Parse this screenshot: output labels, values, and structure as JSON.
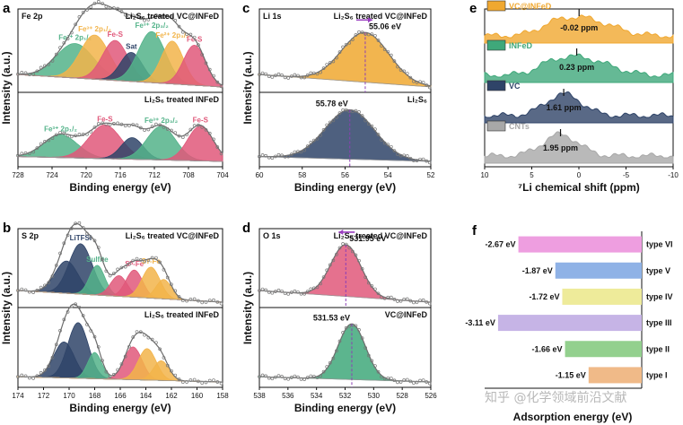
{
  "watermark": "知乎 @化学领域前沿文献",
  "chart_data": [
    {
      "id": "a",
      "panel_letter": "a",
      "type": "area",
      "core_level": "Fe 2p",
      "xlabel": "Binding energy (eV)",
      "ylabel": "Intensity (a.u.)",
      "xlim": [
        728,
        704
      ],
      "xticks": [
        728,
        724,
        720,
        716,
        712,
        708,
        704
      ],
      "subplots": [
        {
          "label": "Li₂S₆ treated VC@INFeD",
          "peaks": [
            {
              "name": "Fe³⁺ 2p₁/₂",
              "center": 721.3,
              "height": 0.5,
              "width": 2.2,
              "color": "#54b38a"
            },
            {
              "name": "Fe³⁺ 2p₁/₂",
              "center": 719.0,
              "height": 0.64,
              "width": 1.7,
              "color": "#f2b44a"
            },
            {
              "name": "Fe-S",
              "center": 716.6,
              "height": 0.58,
              "width": 1.5,
              "color": "#e0587a"
            },
            {
              "name": "Sat",
              "center": 714.7,
              "height": 0.42,
              "width": 1.3,
              "color": "#2f4468"
            },
            {
              "name": "Fe³⁺ 2p₃/₂",
              "center": 712.3,
              "height": 0.74,
              "width": 1.6,
              "color": "#54b38a"
            },
            {
              "name": "Fe²⁺ 2p₃/₂",
              "center": 709.9,
              "height": 0.62,
              "width": 1.3,
              "color": "#f2b44a"
            },
            {
              "name": "Fe-S",
              "center": 707.3,
              "height": 0.58,
              "width": 1.3,
              "color": "#e0587a"
            }
          ]
        },
        {
          "label": "Li₂S₆ treated INFeD",
          "peaks": [
            {
              "name": "Fe³⁺ 2p₁/₂",
              "center": 723.0,
              "height": 0.38,
              "width": 2.0,
              "color": "#54b38a"
            },
            {
              "name": "Fe-S",
              "center": 717.8,
              "height": 0.56,
              "width": 1.9,
              "color": "#e0587a"
            },
            {
              "name": "",
              "center": 714.6,
              "height": 0.36,
              "width": 1.3,
              "color": "#2f4468"
            },
            {
              "name": "Fe³⁺ 2p₃/₂",
              "center": 711.2,
              "height": 0.56,
              "width": 1.7,
              "color": "#54b38a"
            },
            {
              "name": "Fe-S",
              "center": 706.6,
              "height": 0.58,
              "width": 1.5,
              "color": "#e0587a"
            }
          ]
        }
      ]
    },
    {
      "id": "b",
      "panel_letter": "b",
      "type": "area",
      "core_level": "S 2p",
      "xlabel": "Binding energy (eV)",
      "ylabel": "Intensity (a.u.)",
      "xlim": [
        174,
        158
      ],
      "xticks": [
        174,
        172,
        170,
        168,
        166,
        164,
        162,
        160,
        158
      ],
      "subplots": [
        {
          "label": "Li₂S₆ treated VC@INFeD",
          "peaks": [
            {
              "name": "LiTFSI",
              "center": 169.1,
              "height": 0.78,
              "width": 0.9,
              "color": "#2f4468"
            },
            {
              "name": "",
              "center": 170.2,
              "height": 0.5,
              "width": 0.9,
              "color": "#2f4468"
            },
            {
              "name": "Sulfite",
              "center": 167.8,
              "height": 0.46,
              "width": 0.6,
              "color": "#54b38a"
            },
            {
              "name": "Sᴮ-Fe",
              "center": 164.9,
              "height": 0.42,
              "width": 0.65,
              "color": "#e0587a"
            },
            {
              "name": "",
              "center": 166.1,
              "height": 0.32,
              "width": 0.65,
              "color": "#e0587a"
            },
            {
              "name": "Sᴛ-Fe",
              "center": 163.6,
              "height": 0.48,
              "width": 0.7,
              "color": "#f2b44a"
            },
            {
              "name": "",
              "center": 162.6,
              "height": 0.3,
              "width": 0.6,
              "color": "#f2b44a"
            }
          ]
        },
        {
          "label": "Li₂S₆ treated INFeD",
          "peaks": [
            {
              "name": "",
              "center": 169.3,
              "height": 0.85,
              "width": 0.8,
              "color": "#2f4468"
            },
            {
              "name": "",
              "center": 170.4,
              "height": 0.55,
              "width": 0.8,
              "color": "#2f4468"
            },
            {
              "name": "",
              "center": 168.0,
              "height": 0.4,
              "width": 0.55,
              "color": "#54b38a"
            },
            {
              "name": "",
              "center": 165.0,
              "height": 0.5,
              "width": 0.7,
              "color": "#e0587a"
            },
            {
              "name": "",
              "center": 163.9,
              "height": 0.48,
              "width": 0.7,
              "color": "#f2b44a"
            },
            {
              "name": "",
              "center": 162.8,
              "height": 0.3,
              "width": 0.6,
              "color": "#f2b44a"
            }
          ]
        }
      ]
    },
    {
      "id": "c",
      "panel_letter": "c",
      "type": "area",
      "core_level": "Li 1s",
      "xlabel": "Binding energy (eV)",
      "ylabel": "Intensity (a.u.)",
      "xlim": [
        60,
        52
      ],
      "xticks": [
        60,
        58,
        56,
        54,
        52
      ],
      "subplots": [
        {
          "label": "Li₂S₆ treated VC@INFeD",
          "peak_label": "55.06 eV",
          "shift_arrow": "right",
          "peaks": [
            {
              "name": "",
              "center": 55.06,
              "height": 0.72,
              "width": 1.1,
              "color": "#f0a830"
            }
          ]
        },
        {
          "label": "Li₂S₆",
          "peak_label": "55.78 eV",
          "peaks": [
            {
              "name": "",
              "center": 55.78,
              "height": 0.82,
              "width": 1.15,
              "color": "#2f4468"
            }
          ]
        }
      ]
    },
    {
      "id": "d",
      "panel_letter": "d",
      "type": "area",
      "core_level": "O 1s",
      "xlabel": "Binding energy (eV)",
      "ylabel": "Intensity (a.u.)",
      "xlim": [
        538,
        526
      ],
      "xticks": [
        538,
        536,
        534,
        532,
        530,
        528,
        526
      ],
      "subplots": [
        {
          "label": "Li₂S₆ treated VC@INFeD",
          "peak_label": "531.95 eV",
          "shift_arrow": "left",
          "peaks": [
            {
              "name": "",
              "center": 531.95,
              "height": 0.8,
              "width": 1.05,
              "color": "#e0587a"
            }
          ]
        },
        {
          "label": "VC@INFeD",
          "peak_label": "531.53 eV",
          "peaks": [
            {
              "name": "",
              "center": 531.53,
              "height": 0.85,
              "width": 0.95,
              "color": "#3fa87a"
            }
          ]
        }
      ]
    },
    {
      "id": "e",
      "panel_letter": "e",
      "type": "area",
      "core_level": "",
      "xlabel": "⁷Li chemical shift (ppm)",
      "ylabel": "",
      "xlim": [
        10,
        -10
      ],
      "xticks": [
        10,
        5,
        0,
        -5,
        -10
      ],
      "series": [
        {
          "name": "VC@INFeD",
          "shift_label": "-0.02 ppm",
          "shift": -0.02,
          "color": "#f0a830"
        },
        {
          "name": "INFeD",
          "shift_label": "0.23 ppm",
          "shift": 0.23,
          "color": "#3fa87a"
        },
        {
          "name": "VC",
          "shift_label": "1.61 ppm",
          "shift": 1.61,
          "color": "#2f4468"
        },
        {
          "name": "CNTs",
          "shift_label": "1.95 ppm",
          "shift": 1.95,
          "color": "#a8a8a8"
        }
      ]
    },
    {
      "id": "f",
      "panel_letter": "f",
      "type": "bar",
      "orientation": "horizontal",
      "xlabel": "Adsorption energy (eV)",
      "ylabel": "",
      "categories": [
        "type VI",
        "type V",
        "type IV",
        "type III",
        "type II",
        "type I"
      ],
      "values": [
        -2.67,
        -1.87,
        -1.72,
        -3.11,
        -1.66,
        -1.15
      ],
      "value_labels": [
        "-2.67 eV",
        "-1.87 eV",
        "-1.72 eV",
        "-3.11 eV",
        "-1.66 eV",
        "-1.15 eV"
      ],
      "colors": [
        "#ee9ee0",
        "#8fb2e6",
        "#eeeb9a",
        "#c6b4e6",
        "#93d08e",
        "#f0ba88"
      ]
    }
  ]
}
